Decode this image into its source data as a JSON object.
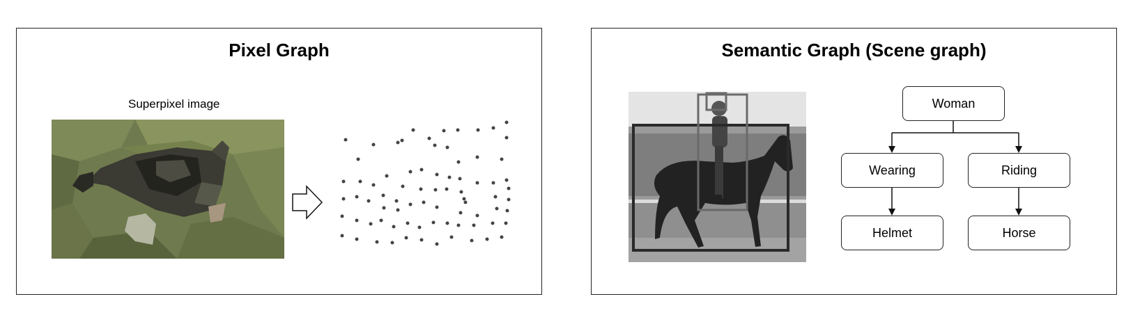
{
  "pixel_panel": {
    "title": "Pixel Graph",
    "caption": "Superpixel image"
  },
  "semantic_panel": {
    "title": "Semantic Graph (Scene graph)",
    "nodes": {
      "woman": "Woman",
      "wearing": "Wearing",
      "riding": "Riding",
      "helmet": "Helmet",
      "horse": "Horse"
    }
  }
}
